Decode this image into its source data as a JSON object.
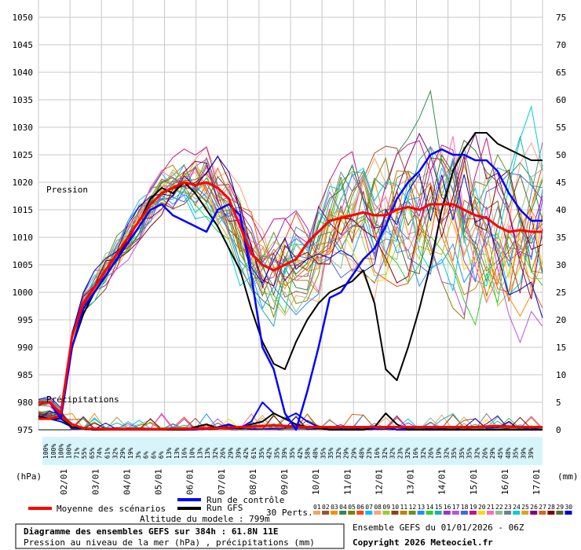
{
  "chart_data": {
    "type": "line",
    "title": "Diagramme des ensembles GEFS sur 384h : 61.8N 11E",
    "subtitle": "Pression au niveau de la mer (hPa) , précipitations (mm)",
    "model_altitude": "Altitude du modele : 799m",
    "run_label": "Ensemble GEFS du 01/01/2026 - 06Z",
    "copyright": "Copyright 2026 Meteociel.fr",
    "left_axis_unit": "(hPa)",
    "right_axis_unit": "(mm)",
    "pressure_label": "Pression",
    "precip_label": "Précipitations",
    "ylim_left": [
      975,
      1050
    ],
    "ylim_right": [
      0,
      75
    ],
    "y_ticks_left": [
      "1050",
      "1045",
      "1040",
      "1035",
      "1030",
      "1025",
      "1020",
      "1015",
      "1010",
      "1005",
      "1000",
      "995",
      "990",
      "985",
      "980",
      "975"
    ],
    "y_ticks_right": [
      "75",
      "70",
      "65",
      "60",
      "55",
      "50",
      "45",
      "40",
      "35",
      "30",
      "25",
      "20",
      "15",
      "10",
      "5",
      "0"
    ],
    "x_ticks": [
      "02/01",
      "03/01",
      "04/01",
      "05/01",
      "06/01",
      "07/01",
      "08/01",
      "09/01",
      "10/01",
      "11/01",
      "12/01",
      "13/01",
      "14/01",
      "15/01",
      "16/01",
      "17/01"
    ],
    "x_hours": [
      0,
      6,
      12,
      18,
      24,
      30,
      36,
      42,
      48,
      54,
      60,
      66,
      72,
      78,
      84,
      90,
      96,
      102,
      108,
      114,
      120,
      126,
      132,
      138,
      144,
      150,
      156,
      162,
      168,
      174,
      180,
      186,
      192,
      198,
      204,
      210,
      216,
      222,
      228,
      234,
      240,
      246,
      252,
      258,
      264,
      270,
      276,
      282,
      288,
      294,
      300,
      306,
      312,
      318,
      324,
      330,
      336,
      342,
      348,
      354,
      360,
      366,
      372,
      378,
      384
    ],
    "precip_probability": [
      "100%",
      "100%",
      "100%",
      "100%",
      "71%",
      "55%",
      "65%",
      "74%",
      "61%",
      "32%",
      "29%",
      "19%",
      "3%",
      "6%",
      "6%",
      "6%",
      "13%",
      "13%",
      "16%",
      "10%",
      "13%",
      "13%",
      "32%",
      "26%",
      "29%",
      "39%",
      "42%",
      "61%",
      "35%",
      "42%",
      "35%",
      "39%",
      "35%",
      "42%",
      "58%",
      "48%",
      "35%",
      "35%",
      "32%",
      "29%",
      "29%",
      "48%",
      "23%",
      "16%",
      "32%",
      "32%",
      "23%",
      "32%",
      "16%",
      "32%",
      "26%",
      "19%",
      "32%",
      "35%",
      "35%",
      "35%",
      "32%",
      "26%",
      "29%",
      "45%",
      "48%",
      "35%",
      "39%",
      "39%"
    ],
    "series": [
      {
        "name": "Moyenne des scénarios",
        "color": "#ff0000",
        "values": [
          980,
          980,
          978,
          992,
          998,
          1001,
          1004,
          1007,
          1010,
          1013,
          1016,
          1018,
          1019,
          1020,
          1019.5,
          1020,
          1019,
          1017,
          1012,
          1007,
          1005,
          1004,
          1005,
          1006,
          1009,
          1011,
          1013,
          1013.5,
          1014,
          1014.5,
          1014,
          1014,
          1015,
          1015.5,
          1015,
          1016,
          1016,
          1016,
          1015,
          1014,
          1013.5,
          1012,
          1011,
          1011.3,
          1011,
          1011
        ]
      },
      {
        "name": "Run de contrôle",
        "color": "#0000ff",
        "values": [
          980,
          980,
          977,
          990,
          997,
          1000,
          1003,
          1006,
          1009,
          1012,
          1015,
          1016,
          1014,
          1013,
          1012,
          1011,
          1015,
          1016,
          1014,
          1003,
          990,
          986,
          978,
          975,
          982,
          990,
          999,
          1000,
          1003,
          1006,
          1008,
          1012,
          1017,
          1020,
          1022,
          1025,
          1026,
          1025,
          1025,
          1024,
          1024,
          1022,
          1018,
          1015,
          1013,
          1013
        ]
      },
      {
        "name": "Run GFS",
        "color": "#000000",
        "values": [
          980,
          980,
          977,
          990,
          996,
          1000,
          1003,
          1006,
          1010,
          1013,
          1017,
          1019,
          1018,
          1020,
          1018,
          1015,
          1012,
          1008,
          1004,
          997,
          991,
          987,
          986,
          991,
          995,
          998,
          1000,
          1001,
          1002,
          1004,
          998,
          986,
          984,
          990,
          997,
          1005,
          1015,
          1022,
          1026,
          1029,
          1029,
          1027,
          1026,
          1025,
          1024,
          1024
        ]
      }
    ],
    "control_precip": [
      2.5,
      2,
      1.5,
      0.5,
      0.2,
      0,
      0,
      0,
      0,
      0,
      0,
      0,
      0,
      0,
      0,
      0.2,
      0.5,
      1,
      0.3,
      1.5,
      5,
      3,
      2,
      3,
      1.5,
      0.5,
      0,
      0,
      0,
      0,
      0.3,
      0.5,
      0,
      0,
      0,
      0,
      0,
      0,
      0,
      0,
      0,
      0,
      0,
      0,
      0,
      0
    ],
    "gfs_precip": [
      2.5,
      2,
      2,
      0.5,
      0.2,
      0,
      0,
      0,
      0,
      0,
      0,
      0,
      0,
      0,
      0.5,
      1,
      0.3,
      0.5,
      0.3,
      1,
      1.5,
      3,
      2,
      1,
      0.5,
      0.3,
      0,
      0,
      0,
      0,
      0.5,
      3,
      1,
      0,
      0,
      0,
      0,
      0,
      0,
      0,
      0,
      0,
      0,
      0,
      0,
      0
    ],
    "mean_precip": [
      2,
      2,
      2.5,
      1,
      0.3,
      0.2,
      0.1,
      0.1,
      0.1,
      0.1,
      0.1,
      0.1,
      0.2,
      0.2,
      0.2,
      0.3,
      0.3,
      0.4,
      0.5,
      0.6,
      0.7,
      0.8,
      0.7,
      0.6,
      0.5,
      0.5,
      0.5,
      0.5,
      0.5,
      0.5,
      0.5,
      0.5,
      0.5,
      0.5,
      0.5,
      0.5,
      0.5,
      0.5,
      0.5,
      0.5,
      0.6,
      0.7,
      0.6,
      0.5,
      0.5,
      0.5
    ],
    "legend_mean": "Moyenne des scénarios",
    "legend_control": "Run de contrôle",
    "legend_gfs": "Run GFS",
    "legend_perts": "30 Perts.",
    "pert_numbers": [
      "01",
      "02",
      "03",
      "04",
      "05",
      "06",
      "07",
      "08",
      "09",
      "10",
      "11",
      "12",
      "13",
      "14",
      "15",
      "16",
      "17",
      "18",
      "19",
      "20",
      "21",
      "22",
      "23",
      "24",
      "25",
      "26",
      "27",
      "28",
      "29",
      "30"
    ],
    "pert_colors": [
      "#f4a460",
      "#a0522d",
      "#ff8c00",
      "#2e8b57",
      "#808000",
      "#ff4500",
      "#00bfff",
      "#ffa07a",
      "#9acd32",
      "#8b4513",
      "#b8860b",
      "#6b8e23",
      "#1e90ff",
      "#32cd32",
      "#20b2aa",
      "#9932cc",
      "#ba55d3",
      "#4169e1",
      "#c71585",
      "#ffd700",
      "#ff69b4",
      "#8fbc8f",
      "#708090",
      "#00ced1",
      "#daa520",
      "#800080",
      "#d2691e",
      "#800000",
      "#556b2f",
      "#0000cd"
    ],
    "grid": true,
    "legend_position": "bottom"
  }
}
